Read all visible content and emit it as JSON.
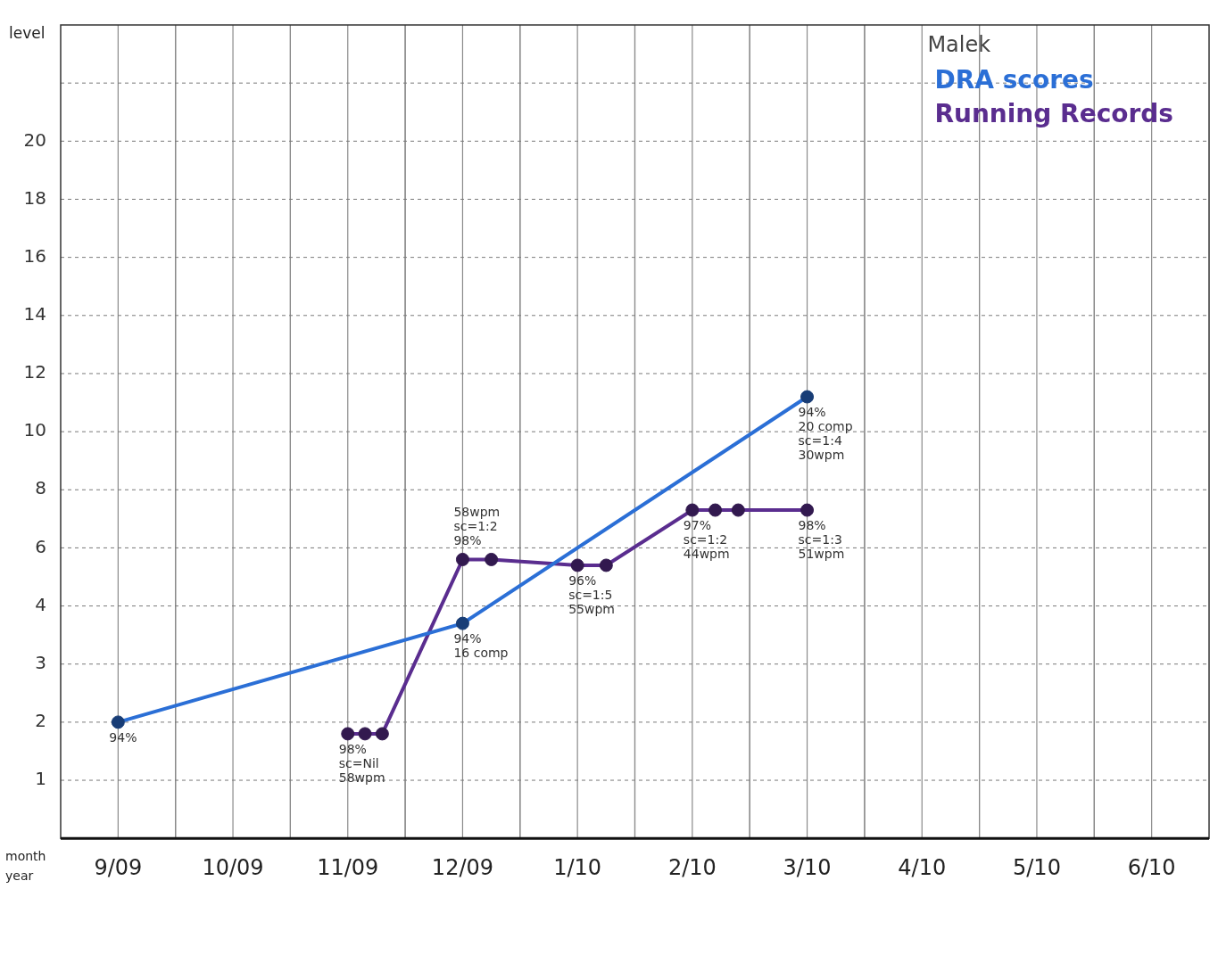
{
  "chart_data": {
    "type": "line",
    "title": "Malek",
    "y_label": "level",
    "x_label": [
      "month",
      "year"
    ],
    "xlim": [
      -0.5,
      9.5
    ],
    "xticks": [
      {
        "value": 0,
        "label": "9/09"
      },
      {
        "value": 1,
        "label": "10/09"
      },
      {
        "value": 2,
        "label": "11/09"
      },
      {
        "value": 3,
        "label": "12/09"
      },
      {
        "value": 4,
        "label": "1/10"
      },
      {
        "value": 5,
        "label": "2/10"
      },
      {
        "value": 6,
        "label": "3/10"
      },
      {
        "value": 7,
        "label": "4/10"
      },
      {
        "value": 8,
        "label": "5/10"
      },
      {
        "value": 9,
        "label": "6/10"
      }
    ],
    "ylim": [
      0,
      24
    ],
    "yticks": [
      1,
      2,
      3,
      4,
      6,
      8,
      10,
      12,
      14,
      16,
      18,
      20
    ],
    "grid": true,
    "legend": "top-right",
    "series": [
      {
        "name": "DRA scores",
        "color": "#2b6fd6",
        "marker": "circle",
        "line_style": "solid",
        "x": [
          0,
          3,
          6
        ],
        "values": [
          2,
          3.7,
          11.2
        ],
        "point_labels": [
          [
            "94%"
          ],
          [
            "94%",
            "16 comp"
          ],
          [
            "94%",
            "20 comp",
            "sc=1:4",
            "30wpm"
          ]
        ]
      },
      {
        "name": "Running Records",
        "color": "#5a2d8f",
        "marker": "circle",
        "line_style": "solid",
        "x": [
          2.0,
          2.15,
          2.3,
          3.0,
          3.25,
          4.0,
          4.25,
          5.0,
          5.2,
          5.4,
          6.0
        ],
        "values": [
          1.8,
          1.8,
          1.8,
          5.6,
          5.6,
          5.4,
          5.4,
          7.3,
          7.3,
          7.3,
          7.3
        ],
        "point_labels": [
          [
            "98%",
            "sc=Nil",
            "58wpm"
          ],
          null,
          null,
          [
            "58wpm",
            "sc=1:2",
            "98%"
          ],
          null,
          [
            "96%",
            "sc=1:5",
            "55wpm"
          ],
          null,
          [
            "97%",
            "sc=1:2",
            "44wpm"
          ],
          null,
          null,
          [
            "98%",
            "sc=1:3",
            "51wpm"
          ]
        ]
      }
    ]
  }
}
